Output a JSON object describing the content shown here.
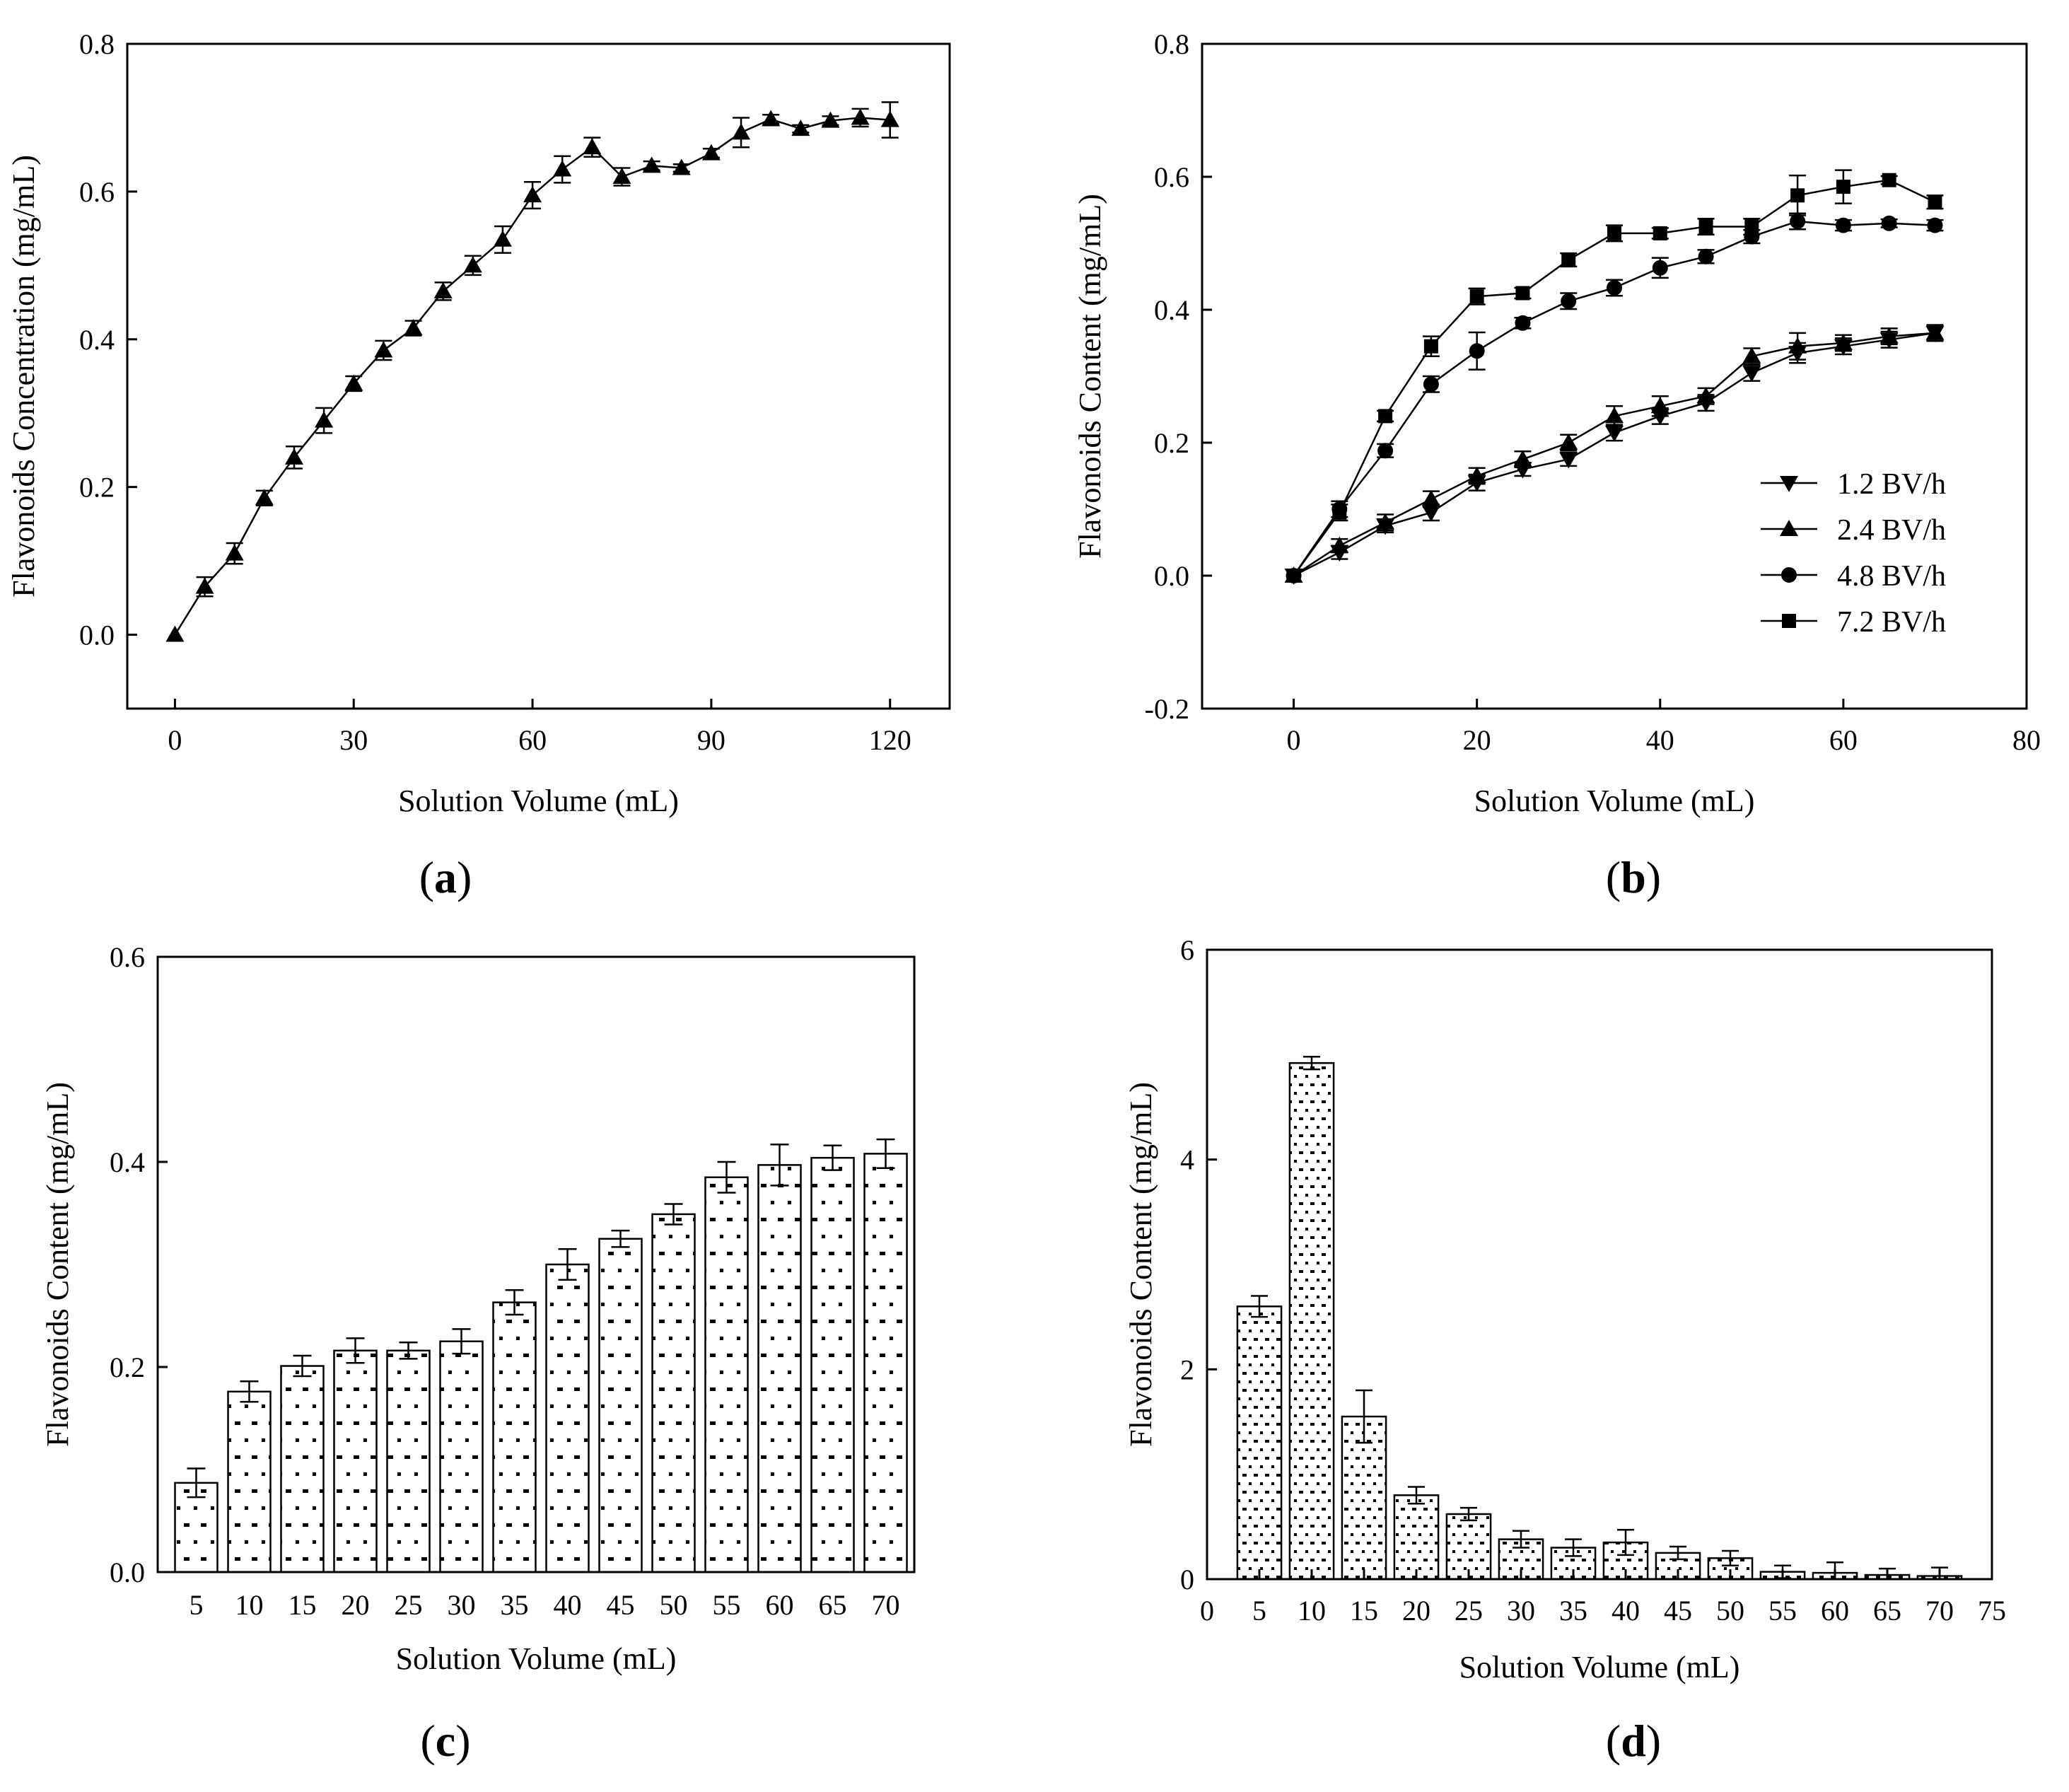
{
  "figure": {
    "panel_letters": [
      {
        "open": "(",
        "letter": "a",
        "close": ")"
      },
      {
        "open": "(",
        "letter": "b",
        "close": ")"
      },
      {
        "open": "(",
        "letter": "c",
        "close": ")"
      },
      {
        "open": "(",
        "letter": "d",
        "close": ")"
      }
    ]
  },
  "colors": {
    "ink": "#000000",
    "background": "#ffffff"
  },
  "chart_data": [
    {
      "panel": "a",
      "type": "line",
      "xlabel": "Solution Volume (mL)",
      "ylabel": "Flavonoids Concentration (mg/mL)",
      "xlim": [
        -8,
        130
      ],
      "ylim": [
        -0.1,
        0.8
      ],
      "xticks": [
        0,
        30,
        60,
        90,
        120
      ],
      "yticks": [
        0.0,
        0.2,
        0.4,
        0.6,
        0.8
      ],
      "xtick_labels": [
        "0",
        "30",
        "60",
        "90",
        "120"
      ],
      "ytick_labels": [
        "0.0",
        "0.2",
        "0.4",
        "0.6",
        "0.8"
      ],
      "series": [
        {
          "name": "",
          "marker": "triangle-up",
          "x": [
            0,
            5,
            10,
            15,
            20,
            25,
            30,
            35,
            40,
            45,
            50,
            55,
            60,
            65,
            70,
            75,
            80,
            85,
            90,
            95,
            100,
            105,
            110,
            115,
            120
          ],
          "y": [
            0.0,
            0.065,
            0.11,
            0.185,
            0.24,
            0.29,
            0.34,
            0.385,
            0.415,
            0.465,
            0.5,
            0.535,
            0.595,
            0.63,
            0.66,
            0.62,
            0.635,
            0.632,
            0.652,
            0.68,
            0.698,
            0.685,
            0.696,
            0.7,
            0.697
          ],
          "err": [
            0,
            0.013,
            0.014,
            0.01,
            0.015,
            0.017,
            0.01,
            0.013,
            0.01,
            0.012,
            0.013,
            0.018,
            0.018,
            0.018,
            0.013,
            0.012,
            0.006,
            0.005,
            0.006,
            0.02,
            0.006,
            0.005,
            0.006,
            0.012,
            0.024
          ]
        }
      ]
    },
    {
      "panel": "b",
      "type": "line",
      "xlabel": "Solution Volume (mL)",
      "ylabel": "Flavonoids Content (mg/mL)",
      "xlim": [
        -10,
        80
      ],
      "ylim": [
        -0.2,
        0.8
      ],
      "xticks": [
        0,
        20,
        40,
        60,
        80
      ],
      "yticks": [
        -0.2,
        0.0,
        0.2,
        0.4,
        0.6,
        0.8
      ],
      "xtick_labels": [
        "0",
        "20",
        "40",
        "60",
        "80"
      ],
      "ytick_labels": [
        "-0.2",
        "0.0",
        "0.2",
        "0.4",
        "0.6",
        "0.8"
      ],
      "legend_position": "lower-right",
      "series": [
        {
          "name": "1.2 BV/h",
          "marker": "triangle-down",
          "x": [
            0,
            5,
            10,
            15,
            20,
            25,
            30,
            35,
            40,
            45,
            50,
            55,
            60,
            65,
            70
          ],
          "y": [
            0.0,
            0.035,
            0.075,
            0.095,
            0.14,
            0.16,
            0.175,
            0.215,
            0.24,
            0.26,
            0.305,
            0.335,
            0.345,
            0.355,
            0.365
          ],
          "err": [
            0,
            0.01,
            0.01,
            0.012,
            0.012,
            0.01,
            0.01,
            0.012,
            0.012,
            0.012,
            0.012,
            0.015,
            0.012,
            0.012,
            0.012
          ]
        },
        {
          "name": "2.4 BV/h",
          "marker": "triangle-up",
          "x": [
            0,
            5,
            10,
            15,
            20,
            25,
            30,
            35,
            40,
            45,
            50,
            55,
            60,
            65,
            70
          ],
          "y": [
            0.0,
            0.045,
            0.08,
            0.115,
            0.15,
            0.175,
            0.2,
            0.24,
            0.255,
            0.27,
            0.33,
            0.345,
            0.35,
            0.36,
            0.365
          ],
          "err": [
            0,
            0.01,
            0.012,
            0.012,
            0.012,
            0.012,
            0.012,
            0.015,
            0.015,
            0.012,
            0.012,
            0.02,
            0.012,
            0.012,
            0.012
          ]
        },
        {
          "name": "4.8 BV/h",
          "marker": "circle",
          "x": [
            0,
            5,
            10,
            15,
            20,
            25,
            30,
            35,
            40,
            45,
            50,
            55,
            60,
            65,
            70
          ],
          "y": [
            0.0,
            0.1,
            0.188,
            0.288,
            0.338,
            0.38,
            0.413,
            0.433,
            0.463,
            0.48,
            0.51,
            0.533,
            0.527,
            0.53,
            0.527
          ],
          "err": [
            0,
            0.012,
            0.01,
            0.012,
            0.028,
            0.008,
            0.012,
            0.012,
            0.015,
            0.01,
            0.01,
            0.012,
            0.008,
            0.006,
            0.008
          ]
        },
        {
          "name": "7.2 BV/h",
          "marker": "square",
          "x": [
            0,
            5,
            10,
            15,
            20,
            25,
            30,
            35,
            40,
            45,
            50,
            55,
            60,
            65,
            70
          ],
          "y": [
            0.0,
            0.095,
            0.24,
            0.345,
            0.42,
            0.425,
            0.475,
            0.515,
            0.515,
            0.525,
            0.525,
            0.572,
            0.585,
            0.595,
            0.562
          ],
          "err": [
            0,
            0.012,
            0.008,
            0.015,
            0.012,
            0.008,
            0.01,
            0.012,
            0.008,
            0.012,
            0.012,
            0.03,
            0.025,
            0.006,
            0.01
          ]
        }
      ]
    },
    {
      "panel": "c",
      "type": "bar",
      "xlabel": "Solution Volume (mL)",
      "ylabel": "Flavonoids Content (mg/mL)",
      "ylim": [
        0,
        0.6
      ],
      "yticks": [
        0.0,
        0.2,
        0.4,
        0.6
      ],
      "ytick_labels": [
        "0.0",
        "0.2",
        "0.4",
        "0.6"
      ],
      "categories": [
        "5",
        "10",
        "15",
        "20",
        "25",
        "30",
        "35",
        "40",
        "45",
        "50",
        "55",
        "60",
        "65",
        "70"
      ],
      "values": [
        0.087,
        0.176,
        0.201,
        0.216,
        0.216,
        0.225,
        0.263,
        0.3,
        0.325,
        0.349,
        0.385,
        0.397,
        0.404,
        0.408
      ],
      "err": [
        0.014,
        0.01,
        0.01,
        0.012,
        0.008,
        0.012,
        0.012,
        0.015,
        0.008,
        0.01,
        0.015,
        0.02,
        0.012,
        0.014
      ],
      "fill": "dotted"
    },
    {
      "panel": "d",
      "type": "bar",
      "xlabel": "Solution Volume (mL)",
      "ylabel": "Flavonoids Content (mg/mL)",
      "xlim": [
        0,
        75
      ],
      "ylim": [
        0,
        6
      ],
      "xticks": [
        0,
        5,
        10,
        15,
        20,
        25,
        30,
        35,
        40,
        45,
        50,
        55,
        60,
        65,
        70,
        75
      ],
      "xtick_labels": [
        "0",
        "5",
        "10",
        "15",
        "20",
        "25",
        "30",
        "35",
        "40",
        "45",
        "50",
        "55",
        "60",
        "65",
        "70",
        "75"
      ],
      "yticks": [
        0,
        2,
        4,
        6
      ],
      "ytick_labels": [
        "0",
        "2",
        "4",
        "6"
      ],
      "x": [
        5,
        10,
        15,
        20,
        25,
        30,
        35,
        40,
        45,
        50,
        55,
        60,
        65,
        70
      ],
      "values": [
        2.6,
        4.92,
        1.55,
        0.8,
        0.62,
        0.38,
        0.3,
        0.35,
        0.25,
        0.2,
        0.07,
        0.06,
        0.04,
        0.03
      ],
      "err": [
        0.1,
        0.06,
        0.25,
        0.08,
        0.06,
        0.08,
        0.08,
        0.12,
        0.06,
        0.07,
        0.06,
        0.1,
        0.06,
        0.08
      ],
      "fill": "dotted"
    }
  ]
}
